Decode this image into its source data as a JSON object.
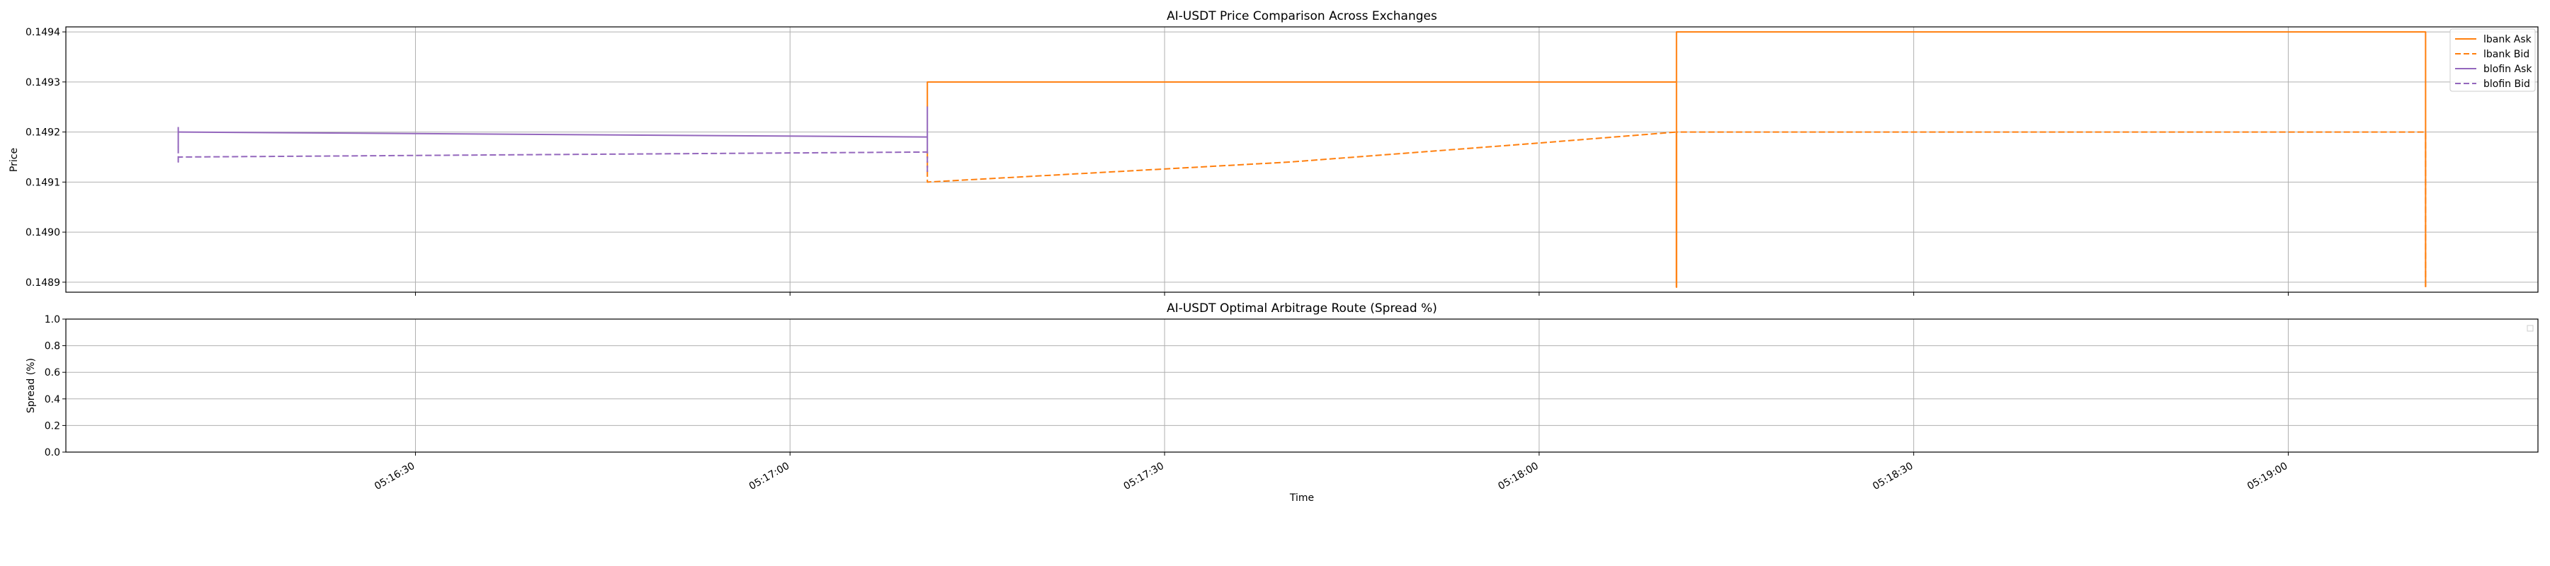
{
  "colors": {
    "lbank": "#ff7f0e",
    "blofin": "#9467bd",
    "grid": "#b0b0b0",
    "axes": "#000000"
  },
  "x_ticks": [
    "05:16:30",
    "05:17:00",
    "05:17:30",
    "05:18:00",
    "05:18:30",
    "05:19:00"
  ],
  "xlabel": "Time",
  "chart_data": [
    {
      "type": "line",
      "title": "AI-USDT Price Comparison Across Exchanges",
      "xlabel": "Time",
      "ylabel": "Price",
      "x_range": [
        "05:16:02",
        "05:19:20"
      ],
      "ylim": [
        0.14888,
        0.14941
      ],
      "y_ticks": [
        "0.1489",
        "0.1490",
        "0.1491",
        "0.1492",
        "0.1493",
        "0.1494"
      ],
      "grid": true,
      "legend_position": "top-right",
      "series": [
        {
          "name": "lbank Ask",
          "color": "#ff7f0e",
          "style": "solid",
          "points": [
            [
              "05:17:11",
              0.14925
            ],
            [
              "05:17:11",
              0.1493
            ],
            [
              "05:18:11",
              0.1493
            ],
            [
              "05:18:11",
              0.14889
            ],
            [
              "05:18:11",
              0.1494
            ],
            [
              "05:19:11",
              0.1494
            ],
            [
              "05:19:11",
              0.14889
            ]
          ]
        },
        {
          "name": "lbank Bid",
          "color": "#ff7f0e",
          "style": "dashed",
          "points": [
            [
              "05:17:11",
              0.14916
            ],
            [
              "05:17:11",
              0.1491
            ],
            [
              "05:17:40",
              0.14914
            ],
            [
              "05:18:00",
              0.149178
            ],
            [
              "05:18:11",
              0.1492
            ],
            [
              "05:18:11",
              0.14889
            ],
            [
              "05:18:11",
              0.1492
            ],
            [
              "05:19:11",
              0.1492
            ],
            [
              "05:19:11",
              0.14898
            ],
            [
              "05:19:11",
              0.14889
            ]
          ]
        },
        {
          "name": "blofin Ask",
          "color": "#9467bd",
          "style": "solid",
          "points": [
            [
              "05:16:11",
              0.14921
            ],
            [
              "05:16:11",
              0.14917
            ],
            [
              "05:16:11",
              0.1492
            ],
            [
              "05:17:11",
              0.14919
            ],
            [
              "05:17:11",
              0.14925
            ],
            [
              "05:17:11",
              0.14916
            ]
          ]
        },
        {
          "name": "blofin Bid",
          "color": "#9467bd",
          "style": "dashed",
          "points": [
            [
              "05:16:11",
              0.14917
            ],
            [
              "05:16:11",
              0.14914
            ],
            [
              "05:16:11",
              0.14915
            ],
            [
              "05:17:11",
              0.14916
            ],
            [
              "05:17:11",
              0.14912
            ]
          ]
        }
      ]
    },
    {
      "type": "line",
      "title": "AI-USDT Optimal Arbitrage Route (Spread %)",
      "xlabel": "Time",
      "ylabel": "Spread (%)",
      "ylim": [
        0.0,
        1.0
      ],
      "y_ticks": [
        "0.0",
        "0.2",
        "0.4",
        "0.6",
        "0.8",
        "1.0"
      ],
      "grid": true,
      "legend_position": "top-right",
      "series": []
    }
  ]
}
